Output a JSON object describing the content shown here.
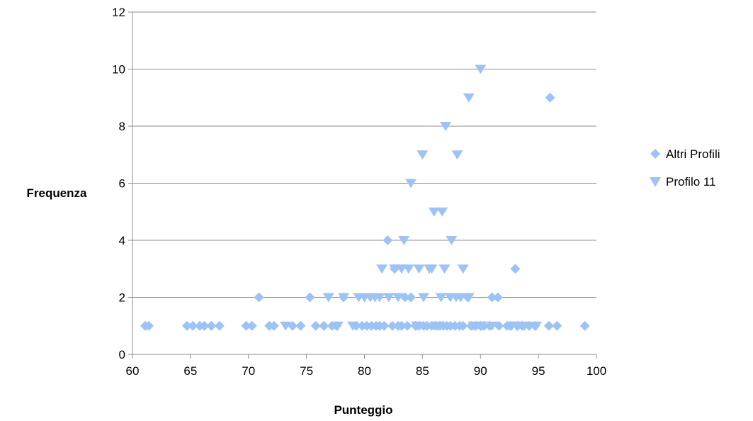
{
  "chart_data": {
    "type": "scatter",
    "title": "",
    "xlabel": "Punteggio",
    "ylabel": "Frequenza",
    "xlim": [
      60,
      100
    ],
    "ylim": [
      0,
      12
    ],
    "xticks": [
      60,
      65,
      70,
      75,
      80,
      85,
      90,
      95,
      100
    ],
    "yticks": [
      0,
      2,
      4,
      6,
      8,
      10,
      12
    ],
    "grid": "horizontal",
    "legend_position": "right",
    "series": [
      {
        "name": "Altri Profili",
        "marker": "diamond",
        "color": "#9dc3f5",
        "points": [
          [
            61.1,
            1
          ],
          [
            61.4,
            1
          ],
          [
            64.7,
            1
          ],
          [
            65.2,
            1
          ],
          [
            65.8,
            1
          ],
          [
            66.2,
            1
          ],
          [
            66.8,
            1
          ],
          [
            67.5,
            1
          ],
          [
            69.8,
            1
          ],
          [
            70.3,
            1
          ],
          [
            70.9,
            2
          ],
          [
            71.8,
            1
          ],
          [
            72.2,
            1
          ],
          [
            73.8,
            1
          ],
          [
            74.5,
            1
          ],
          [
            75.3,
            2
          ],
          [
            75.8,
            1
          ],
          [
            76.5,
            1
          ],
          [
            77.2,
            1
          ],
          [
            77.6,
            1
          ],
          [
            78.2,
            2
          ],
          [
            79.3,
            1
          ],
          [
            79.8,
            1
          ],
          [
            80.2,
            1
          ],
          [
            80.6,
            1
          ],
          [
            81.0,
            1
          ],
          [
            81.3,
            1
          ],
          [
            81.7,
            1
          ],
          [
            82.0,
            4
          ],
          [
            82.4,
            1
          ],
          [
            82.6,
            3
          ],
          [
            82.9,
            1
          ],
          [
            83.2,
            1
          ],
          [
            83.5,
            2
          ],
          [
            83.7,
            1
          ],
          [
            84.0,
            2
          ],
          [
            84.4,
            1
          ],
          [
            84.7,
            1
          ],
          [
            85.1,
            1
          ],
          [
            85.4,
            1
          ],
          [
            85.8,
            1
          ],
          [
            86.1,
            1
          ],
          [
            86.5,
            1
          ],
          [
            86.8,
            1
          ],
          [
            87.1,
            1
          ],
          [
            87.4,
            1
          ],
          [
            87.8,
            1
          ],
          [
            88.2,
            1
          ],
          [
            88.5,
            1
          ],
          [
            88.9,
            2
          ],
          [
            89.2,
            1
          ],
          [
            89.6,
            1
          ],
          [
            90.0,
            1
          ],
          [
            90.3,
            1
          ],
          [
            90.8,
            1
          ],
          [
            91.0,
            2
          ],
          [
            91.5,
            2
          ],
          [
            91.6,
            1
          ],
          [
            92.3,
            1
          ],
          [
            92.6,
            1
          ],
          [
            93.0,
            3
          ],
          [
            93.2,
            1
          ],
          [
            93.6,
            1
          ],
          [
            94.2,
            1
          ],
          [
            94.7,
            1
          ],
          [
            95.9,
            1
          ],
          [
            96.0,
            9
          ],
          [
            96.6,
            1
          ],
          [
            99.0,
            1
          ]
        ]
      },
      {
        "name": "Profilo 11",
        "marker": "triangle-down",
        "color": "#9dc3f5",
        "points": [
          [
            73.2,
            1
          ],
          [
            76.9,
            2
          ],
          [
            77.7,
            1
          ],
          [
            78.2,
            2
          ],
          [
            79.0,
            1
          ],
          [
            79.5,
            2
          ],
          [
            80.0,
            2
          ],
          [
            80.5,
            2
          ],
          [
            80.9,
            2
          ],
          [
            81.3,
            2
          ],
          [
            81.5,
            3
          ],
          [
            82.1,
            2
          ],
          [
            82.6,
            3
          ],
          [
            82.9,
            2
          ],
          [
            83.2,
            3
          ],
          [
            83.4,
            4
          ],
          [
            83.8,
            3
          ],
          [
            84.0,
            6
          ],
          [
            84.5,
            1
          ],
          [
            84.7,
            3
          ],
          [
            85.0,
            7
          ],
          [
            85.1,
            2
          ],
          [
            85.6,
            3
          ],
          [
            85.8,
            3
          ],
          [
            86.0,
            5
          ],
          [
            86.3,
            1
          ],
          [
            86.6,
            2
          ],
          [
            86.7,
            5
          ],
          [
            86.9,
            3
          ],
          [
            87.0,
            8
          ],
          [
            87.4,
            2
          ],
          [
            87.5,
            4
          ],
          [
            87.9,
            2
          ],
          [
            88.0,
            7
          ],
          [
            88.3,
            2
          ],
          [
            88.5,
            3
          ],
          [
            89.0,
            9
          ],
          [
            89.0,
            2
          ],
          [
            89.4,
            1
          ],
          [
            90.0,
            10
          ],
          [
            90.1,
            1
          ],
          [
            91.0,
            1
          ],
          [
            92.7,
            1
          ],
          [
            93.1,
            1
          ],
          [
            93.8,
            1
          ],
          [
            94.8,
            1
          ]
        ]
      }
    ]
  }
}
